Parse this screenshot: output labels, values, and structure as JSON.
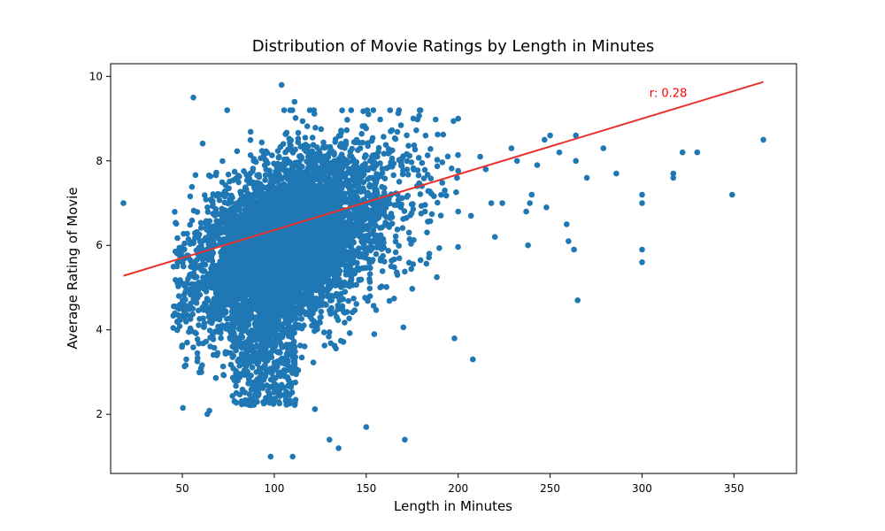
{
  "chart_data": {
    "type": "scatter",
    "title": "Distribution of Movie Ratings by Length in Minutes",
    "xlabel": "Length in Minutes",
    "ylabel": "Average Rating of Movie",
    "xlim": [
      11,
      384
    ],
    "ylim": [
      0.6,
      10.3
    ],
    "xticks": [
      50,
      100,
      150,
      200,
      250,
      300,
      350
    ],
    "yticks": [
      2,
      4,
      6,
      8,
      10
    ],
    "grid": false,
    "point_color": "#1f77b4",
    "trendline": {
      "color": "#e8322b",
      "x": [
        18,
        366
      ],
      "y": [
        5.28,
        9.87
      ]
    },
    "annotation": {
      "text": "r: 0.28",
      "x": 304,
      "y": 9.6,
      "color": "#ff0000"
    },
    "cluster": {
      "description_free": true,
      "dense_region": {
        "x": [
          45,
          190
        ],
        "y": [
          1.0,
          9.3
        ]
      },
      "approx_count": 6000
    },
    "outliers": [
      [
        18,
        7.0
      ],
      [
        104,
        9.8
      ],
      [
        56,
        9.5
      ],
      [
        111,
        9.4
      ],
      [
        200,
        9.0
      ],
      [
        250,
        8.6
      ],
      [
        255,
        8.2
      ],
      [
        264,
        8.6
      ],
      [
        279,
        8.3
      ],
      [
        286,
        7.7
      ],
      [
        300,
        7.2
      ],
      [
        300,
        7.0
      ],
      [
        300,
        5.9
      ],
      [
        300,
        5.6
      ],
      [
        317,
        7.7
      ],
      [
        317,
        7.6
      ],
      [
        322,
        8.2
      ],
      [
        330,
        8.2
      ],
      [
        349,
        7.2
      ],
      [
        366,
        8.5
      ],
      [
        265,
        4.7
      ],
      [
        260,
        6.1
      ],
      [
        259,
        6.5
      ],
      [
        263,
        5.9
      ],
      [
        270,
        7.6
      ],
      [
        264,
        8.0
      ],
      [
        248,
        6.9
      ],
      [
        247,
        8.5
      ],
      [
        238,
        6.0
      ],
      [
        237,
        6.8
      ],
      [
        239,
        7.0
      ],
      [
        240,
        7.2
      ],
      [
        243,
        7.9
      ],
      [
        232,
        8.0
      ],
      [
        229,
        8.3
      ],
      [
        224,
        7.0
      ],
      [
        220,
        6.2
      ],
      [
        218,
        7.0
      ],
      [
        215,
        7.8
      ],
      [
        212,
        8.1
      ],
      [
        208,
        3.3
      ],
      [
        198,
        3.8
      ],
      [
        207,
        6.7
      ],
      [
        200,
        6.8
      ],
      [
        171,
        1.4
      ],
      [
        150,
        1.7
      ],
      [
        135,
        1.2
      ],
      [
        130,
        1.4
      ],
      [
        110,
        1.0
      ],
      [
        98,
        1.0
      ]
    ]
  }
}
